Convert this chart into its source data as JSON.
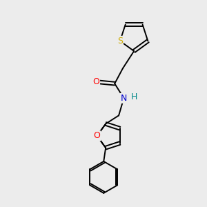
{
  "bg_color": "#ececec",
  "atom_colors": {
    "S": "#ccaa00",
    "O": "#ff0000",
    "N": "#0000cc",
    "H": "#008888",
    "C": "#000000"
  },
  "bond_color": "#000000",
  "bond_width": 1.4,
  "figsize": [
    3.0,
    3.0
  ],
  "dpi": 100,
  "xlim": [
    0,
    10
  ],
  "ylim": [
    0,
    10
  ]
}
